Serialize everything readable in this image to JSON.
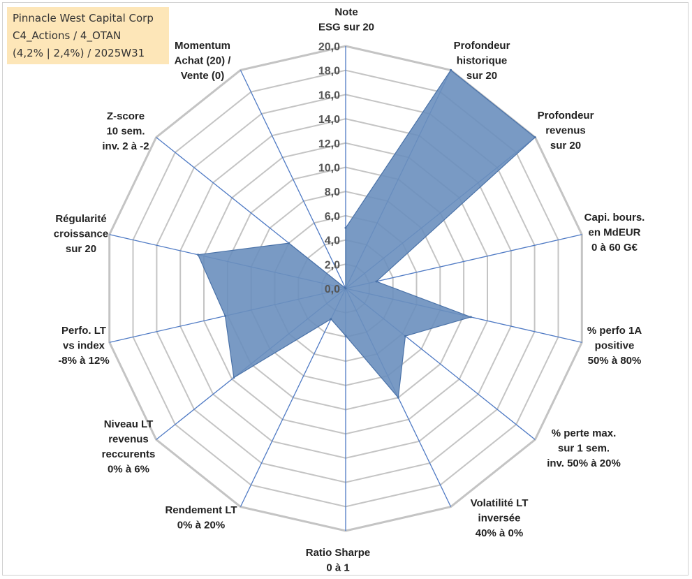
{
  "title_lines": [
    "Pinnacle West Capital Corp",
    "C4_Actions / 4_OTAN",
    "(4,2% | 2,4%) / 2025W31"
  ],
  "chart_data": {
    "type": "radar",
    "rmax": 20,
    "ticks": [
      "0,0",
      "2,0",
      "4,0",
      "6,0",
      "8,0",
      "10,0",
      "12,0",
      "14,0",
      "16,0",
      "18,0",
      "20,0"
    ],
    "categories": [
      [
        "Note",
        "ESG sur 20"
      ],
      [
        "Profondeur",
        "historique",
        "sur 20"
      ],
      [
        "Profondeur",
        "revenus",
        "sur 20"
      ],
      [
        "Capi. bours.",
        "en MdEUR",
        "0 à 60 G€"
      ],
      [
        "% perfo 1A",
        "positive",
        "50% à 80%"
      ],
      [
        "% perte max.",
        "sur 1 sem.",
        "inv. 50% à 20%"
      ],
      [
        "Volatilité LT",
        "inversée",
        "40% à 0%"
      ],
      [
        "Ratio Sharpe",
        "0 à 1"
      ],
      [
        "Rendement LT",
        "0% à 20%"
      ],
      [
        "Niveau LT",
        "revenus",
        "reccurents",
        "0% à 6%"
      ],
      [
        "Perfo. LT",
        "vs index",
        "-8% à 12%"
      ],
      [
        "Régularité",
        "croissance",
        "sur 20"
      ],
      [
        "Z-score",
        "10 sem.",
        "inv. 2 à -2"
      ],
      [
        "Momentum",
        "Achat (20) /",
        "Vente (0)"
      ]
    ],
    "values": [
      5.0,
      20.0,
      20.0,
      2.6,
      10.6,
      6.3,
      10.0,
      3.9,
      2.8,
      11.8,
      10.2,
      12.5,
      6.0,
      0.0
    ],
    "series_color": "#6a8fbe",
    "series_stroke": "#4a72a8",
    "grid_color": "#c4c4c4",
    "spoke_color": "#4f7ac4",
    "grid": true
  }
}
